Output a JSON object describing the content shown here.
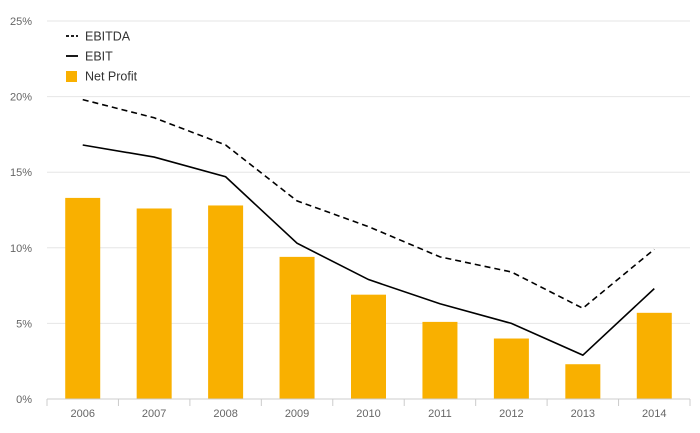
{
  "chart_data": {
    "type": "bar",
    "categories": [
      "2006",
      "2007",
      "2008",
      "2009",
      "2010",
      "2011",
      "2012",
      "2013",
      "2014"
    ],
    "ylim": [
      0,
      25
    ],
    "yticks": [
      0,
      5,
      10,
      15,
      20,
      25
    ],
    "ytick_labels": [
      "0%",
      "5%",
      "10%",
      "15%",
      "20%",
      "25%"
    ],
    "grid": true,
    "legend_position": "top-left",
    "series": [
      {
        "name": "EBITDA",
        "kind": "line",
        "dash": "dashed",
        "color": "#000000",
        "values": [
          19.8,
          18.6,
          16.8,
          13.1,
          11.4,
          9.4,
          8.4,
          6.0,
          9.9
        ]
      },
      {
        "name": "EBIT",
        "kind": "line",
        "dash": "solid",
        "color": "#000000",
        "values": [
          16.8,
          16.0,
          14.7,
          10.3,
          7.9,
          6.3,
          5.0,
          2.9,
          7.3
        ]
      },
      {
        "name": "Net Profit",
        "kind": "bar",
        "color": "#F9B000",
        "values": [
          13.3,
          12.6,
          12.8,
          9.4,
          6.9,
          5.1,
          4.0,
          2.3,
          5.7
        ]
      }
    ],
    "xlabel": "",
    "ylabel": "",
    "title": ""
  }
}
